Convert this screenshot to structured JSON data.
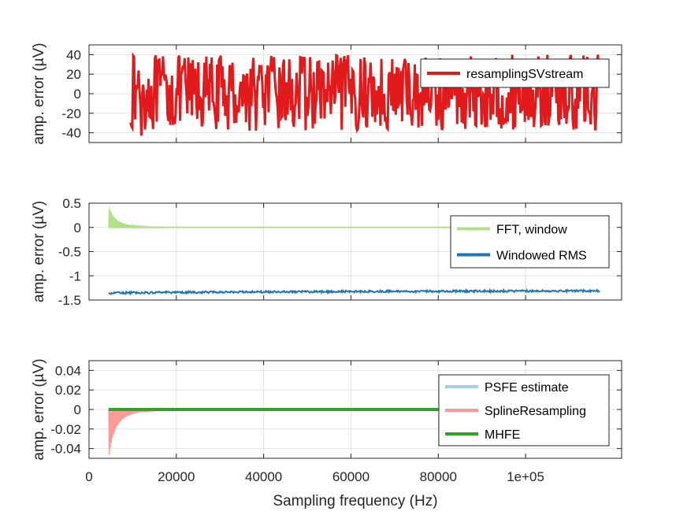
{
  "chart_data": [
    {
      "type": "line",
      "ylabel": "amp. error (µV)",
      "xlim": [
        0,
        122000
      ],
      "ylim": [
        -50,
        50
      ],
      "yticks": [
        -40,
        -20,
        0,
        20,
        40
      ],
      "ytick_labels": [
        "-40",
        "-20",
        "0",
        "20",
        "40"
      ],
      "grid": true,
      "legend_location": "top-right",
      "series": [
        {
          "name": "resamplingSVstream",
          "color": "#e31a1c",
          "style": "dense_noise",
          "x_start": 9500,
          "x_end": 117000,
          "amplitude": [
            -38,
            40
          ],
          "extreme_min": -43
        }
      ]
    },
    {
      "type": "line",
      "ylabel": "amp. error (µV)",
      "xlim": [
        0,
        122000
      ],
      "ylim": [
        -1.5,
        0.5
      ],
      "yticks": [
        -1.5,
        -1,
        -0.5,
        0,
        0.5
      ],
      "ytick_labels": [
        "-1.5",
        "-1",
        "-0.5",
        "0",
        "0.5"
      ],
      "grid": true,
      "legend_location": "middle-right",
      "series": [
        {
          "name": "FFT, window",
          "color": "#b2df8a",
          "style": "decay",
          "x_start": 4500,
          "x_end": 117000,
          "base": 0,
          "peak": 0.45
        },
        {
          "name": "Windowed RMS",
          "color": "#1f78b4",
          "style": "band",
          "x_start": 4500,
          "x_end": 117000,
          "level_start": -1.36,
          "level_end": -1.31
        }
      ]
    },
    {
      "type": "line",
      "ylabel": "amp. error (µV)",
      "xlabel": "Sampling frequency (Hz)",
      "xlim": [
        0,
        122000
      ],
      "ylim": [
        -0.05,
        0.05
      ],
      "yticks": [
        -0.04,
        -0.02,
        0,
        0.02,
        0.04
      ],
      "ytick_labels": [
        "-0.04",
        "-0.02",
        "0",
        "0.02",
        "0.04"
      ],
      "xticks": [
        0,
        20000,
        40000,
        60000,
        80000,
        100000
      ],
      "xtick_labels": [
        "0",
        "20000",
        "40000",
        "60000",
        "80000",
        "1e+05"
      ],
      "grid": true,
      "legend_location": "top-right",
      "series": [
        {
          "name": "PSFE estimate",
          "color": "#a6cee3",
          "style": "flat",
          "x_start": 4500,
          "x_end": 117000,
          "level": 0
        },
        {
          "name": "SplineResampling",
          "color": "#fb9a99",
          "style": "decay",
          "x_start": 4500,
          "x_end": 117000,
          "base": 0,
          "peak": -0.05
        },
        {
          "name": "MHFE",
          "color": "#33a02c",
          "style": "flat",
          "x_start": 4500,
          "x_end": 117000,
          "level": 0
        }
      ]
    }
  ]
}
